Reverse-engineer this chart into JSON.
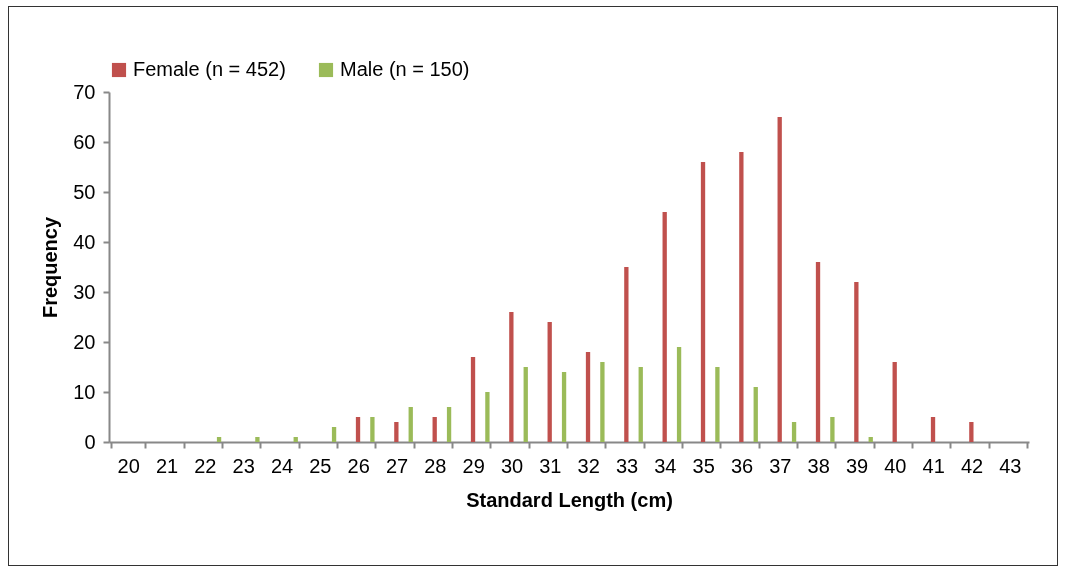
{
  "chart_data": {
    "type": "bar",
    "xlabel": "Standard Length (cm)",
    "ylabel": "Frequency",
    "categories": [
      "20",
      "21",
      "22",
      "23",
      "24",
      "25",
      "26",
      "27",
      "28",
      "29",
      "30",
      "31",
      "32",
      "33",
      "34",
      "35",
      "36",
      "37",
      "38",
      "39",
      "40",
      "41",
      "42",
      "43"
    ],
    "series": [
      {
        "name": "Female (n = 452)",
        "color": "#c0504d",
        "values": [
          0,
          0,
          0,
          0,
          0,
          0,
          5,
          4,
          5,
          17,
          26,
          24,
          18,
          35,
          46,
          56,
          58,
          65,
          36,
          32,
          16,
          5,
          4,
          0
        ]
      },
      {
        "name": "Male (n = 150)",
        "color": "#9bbb59",
        "values": [
          0,
          0,
          1,
          1,
          1,
          3,
          5,
          7,
          7,
          10,
          15,
          14,
          16,
          15,
          19,
          15,
          11,
          4,
          5,
          1,
          0,
          0,
          0,
          0
        ]
      }
    ],
    "ylim": [
      0,
      70
    ],
    "yticks": [
      0,
      10,
      20,
      30,
      40,
      50,
      60,
      70
    ],
    "grid": false,
    "legend": "top"
  }
}
